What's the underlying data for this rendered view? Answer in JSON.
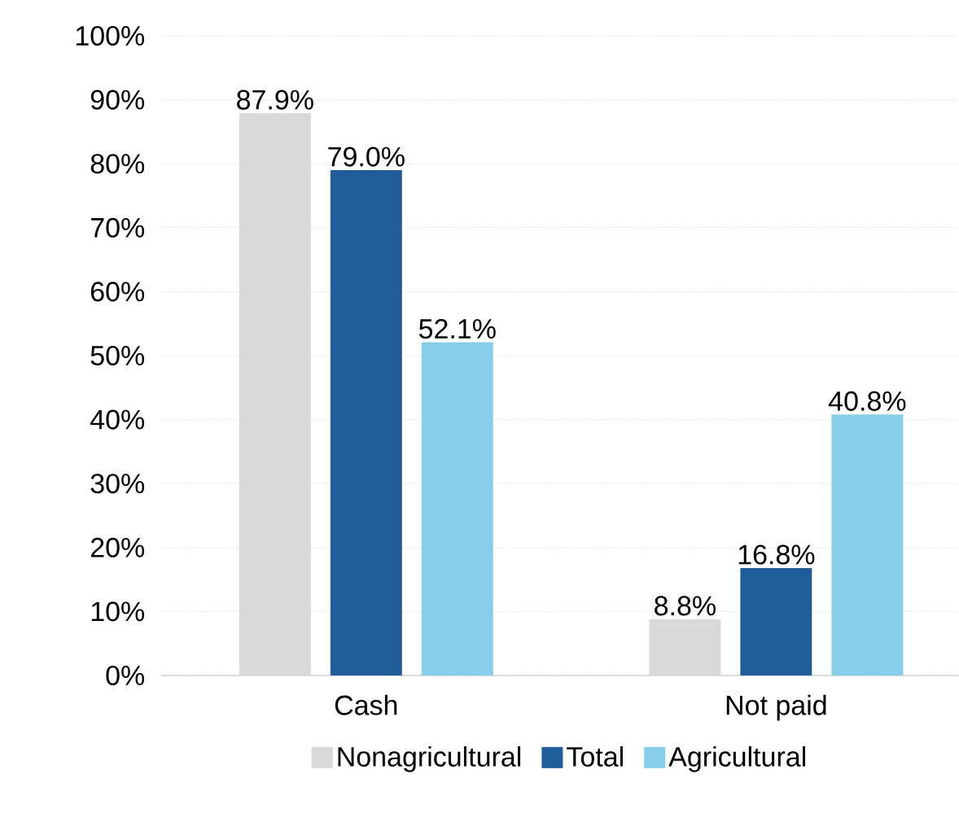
{
  "chart_data": {
    "type": "bar",
    "categories": [
      "Cash",
      "Not paid"
    ],
    "series": [
      {
        "name": "Nonagricultural",
        "color": "#d9d9d9",
        "values": [
          87.9,
          8.8
        ],
        "value_labels": [
          "87.9%",
          "8.8%"
        ]
      },
      {
        "name": "Total",
        "color": "#1f5c99",
        "values": [
          79.0,
          16.8
        ],
        "value_labels": [
          "79.0%",
          "16.8%"
        ]
      },
      {
        "name": "Agricultural",
        "color": "#87ceeb",
        "values": [
          52.1,
          40.8
        ],
        "value_labels": [
          "52.1%",
          "40.8%"
        ]
      }
    ],
    "ylim": [
      0,
      100
    ],
    "yticks": [
      {
        "value": 0,
        "label": "0%"
      },
      {
        "value": 10,
        "label": "10%"
      },
      {
        "value": 20,
        "label": "20%"
      },
      {
        "value": 30,
        "label": "30%"
      },
      {
        "value": 40,
        "label": "40%"
      },
      {
        "value": 50,
        "label": "50%"
      },
      {
        "value": 60,
        "label": "60%"
      },
      {
        "value": 70,
        "label": "70%"
      },
      {
        "value": 80,
        "label": "80%"
      },
      {
        "value": 90,
        "label": "90%"
      },
      {
        "value": 100,
        "label": "100%"
      }
    ],
    "grid": "y",
    "legend": "bottom"
  }
}
